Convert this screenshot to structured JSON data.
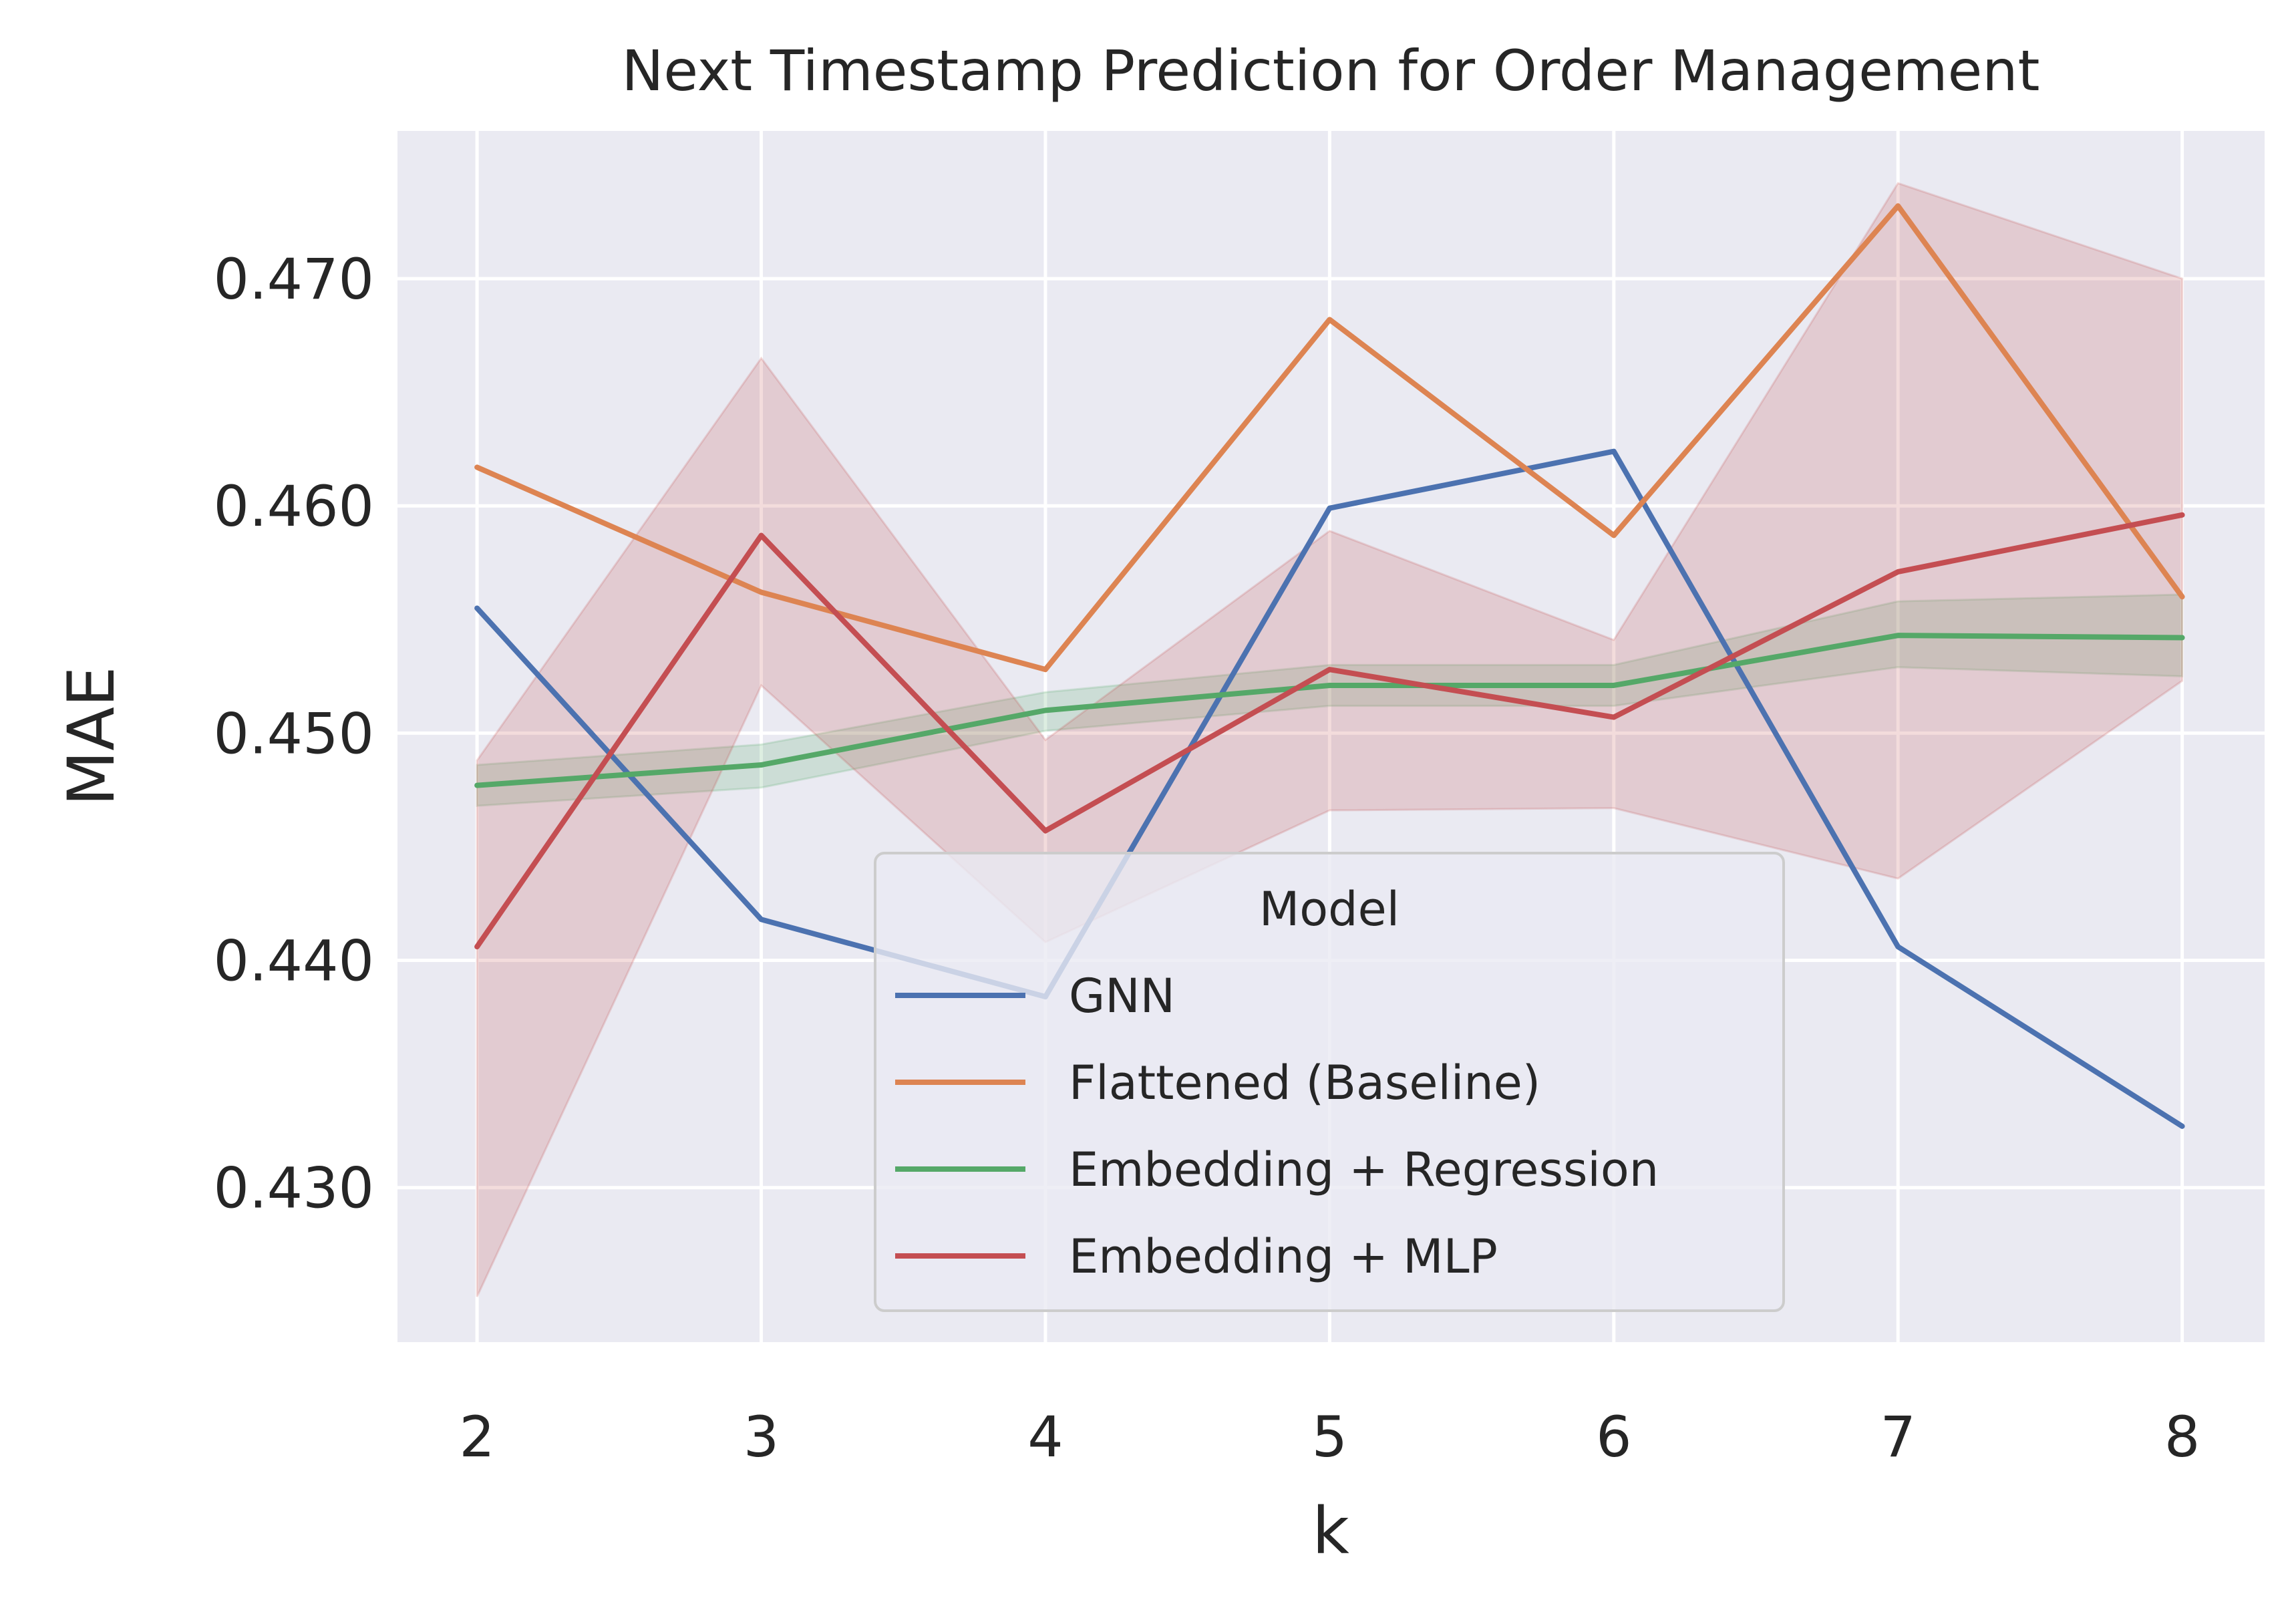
{
  "chart_data": {
    "type": "line",
    "title": "Next Timestamp Prediction for Order Management",
    "xlabel": "k",
    "ylabel": "MAE",
    "x": [
      2,
      3,
      4,
      5,
      6,
      7,
      8
    ],
    "xlim": [
      1.72,
      8.29
    ],
    "ylim": [
      0.4232,
      0.4765
    ],
    "yticks": [
      "0.430",
      "0.440",
      "0.450",
      "0.460",
      "0.470"
    ],
    "ytick_values": [
      0.43,
      0.44,
      0.45,
      0.46,
      0.47
    ],
    "xticks": [
      "2",
      "3",
      "4",
      "5",
      "6",
      "7",
      "8"
    ],
    "grid": true,
    "legend": {
      "title": "Model",
      "placement": "lower-center"
    },
    "series": [
      {
        "name": "GNN",
        "color": "#4c72b0",
        "values": [
          0.4555,
          0.4418,
          0.4384,
          0.4599,
          0.4624,
          0.4406,
          0.4327
        ]
      },
      {
        "name": "Flattened (Baseline)",
        "color": "#dd8452",
        "values": [
          0.4617,
          0.4562,
          0.4528,
          0.4682,
          0.4587,
          0.4732,
          0.456
        ]
      },
      {
        "name": "Embedding + Regression",
        "color": "#55a868",
        "values": [
          0.4477,
          0.4486,
          0.451,
          0.4521,
          0.4521,
          0.4543,
          0.4542
        ],
        "band_lower": [
          0.4468,
          0.4476,
          0.4501,
          0.4512,
          0.4512,
          0.4529,
          0.4525
        ],
        "band_upper": [
          0.4486,
          0.4495,
          0.4518,
          0.453,
          0.453,
          0.4558,
          0.4561
        ]
      },
      {
        "name": "Embedding + MLP",
        "color": "#c44e52",
        "values": [
          0.4406,
          0.4587,
          0.4457,
          0.4528,
          0.4507,
          0.4571,
          0.4596
        ],
        "band_lower": [
          0.4252,
          0.4521,
          0.4408,
          0.4466,
          0.4467,
          0.4436,
          0.4523
        ],
        "band_upper": [
          0.4488,
          0.4665,
          0.4497,
          0.4589,
          0.4541,
          0.4742,
          0.47
        ]
      }
    ]
  }
}
